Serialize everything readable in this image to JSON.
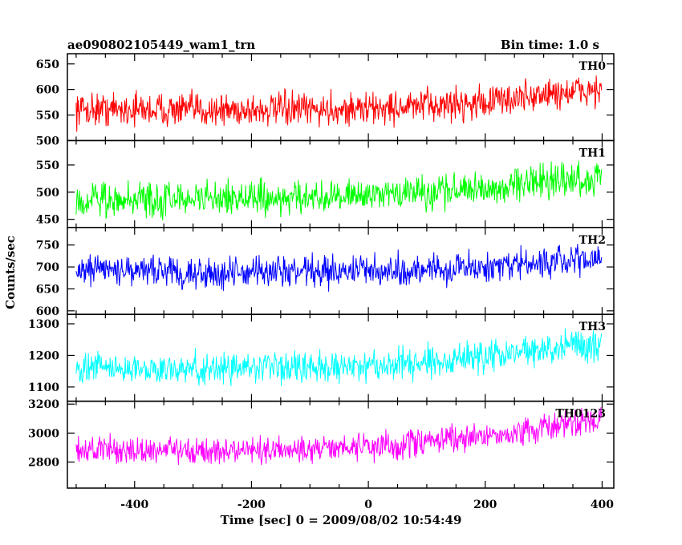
{
  "chart_data": {
    "type": "line",
    "title": "ae090802105449_wam1_trn",
    "bin_time_label": "Bin time: 1.0 s",
    "xlabel": "Time [sec] 0 = 2009/08/02 10:54:49",
    "ylabel": "Counts/sec",
    "xlim": [
      -515,
      420
    ],
    "x_ticks": [
      -400,
      -200,
      0,
      200,
      400
    ],
    "grid": false,
    "panels": [
      {
        "name": "TH0",
        "color": "#ff0000",
        "ylim": [
          500,
          670
        ],
        "y_ticks": [
          500,
          550,
          600,
          650
        ],
        "x": [
          -500,
          -400,
          -300,
          -200,
          -100,
          0,
          100,
          200,
          300,
          400
        ],
        "trend": [
          562,
          561,
          560,
          560,
          560,
          562,
          568,
          575,
          590,
          600
        ],
        "noise_amp": 30
      },
      {
        "name": "TH1",
        "color": "#00ff00",
        "ylim": [
          435,
          595
        ],
        "y_ticks": [
          450,
          500,
          550
        ],
        "x": [
          -500,
          -400,
          -300,
          -200,
          -100,
          0,
          100,
          200,
          300,
          400
        ],
        "trend": [
          485,
          487,
          488,
          488,
          489,
          492,
          500,
          508,
          520,
          527
        ],
        "noise_amp": 28
      },
      {
        "name": "TH2",
        "color": "#0000ff",
        "ylim": [
          592,
          790
        ],
        "y_ticks": [
          600,
          650,
          700,
          750
        ],
        "x": [
          -500,
          -400,
          -300,
          -200,
          -100,
          0,
          100,
          200,
          300,
          400
        ],
        "trend": [
          695,
          690,
          688,
          688,
          688,
          690,
          695,
          700,
          710,
          720
        ],
        "noise_amp": 32
      },
      {
        "name": "TH3",
        "color": "#00ffff",
        "ylim": [
          1055,
          1330
        ],
        "y_ticks": [
          1100,
          1200,
          1300
        ],
        "x": [
          -500,
          -400,
          -300,
          -200,
          -100,
          0,
          100,
          200,
          300,
          400
        ],
        "trend": [
          1160,
          1158,
          1158,
          1160,
          1162,
          1168,
          1178,
          1195,
          1220,
          1240
        ],
        "noise_amp": 45
      },
      {
        "name": "TH0123",
        "color": "#ff00ff",
        "ylim": [
          2620,
          3220
        ],
        "y_ticks": [
          2800,
          3000,
          3200
        ],
        "x": [
          -500,
          -400,
          -300,
          -200,
          -100,
          0,
          100,
          200,
          300,
          400
        ],
        "trend": [
          2890,
          2880,
          2875,
          2878,
          2885,
          2905,
          2935,
          2975,
          3040,
          3090
        ],
        "noise_amp": 85
      }
    ]
  }
}
